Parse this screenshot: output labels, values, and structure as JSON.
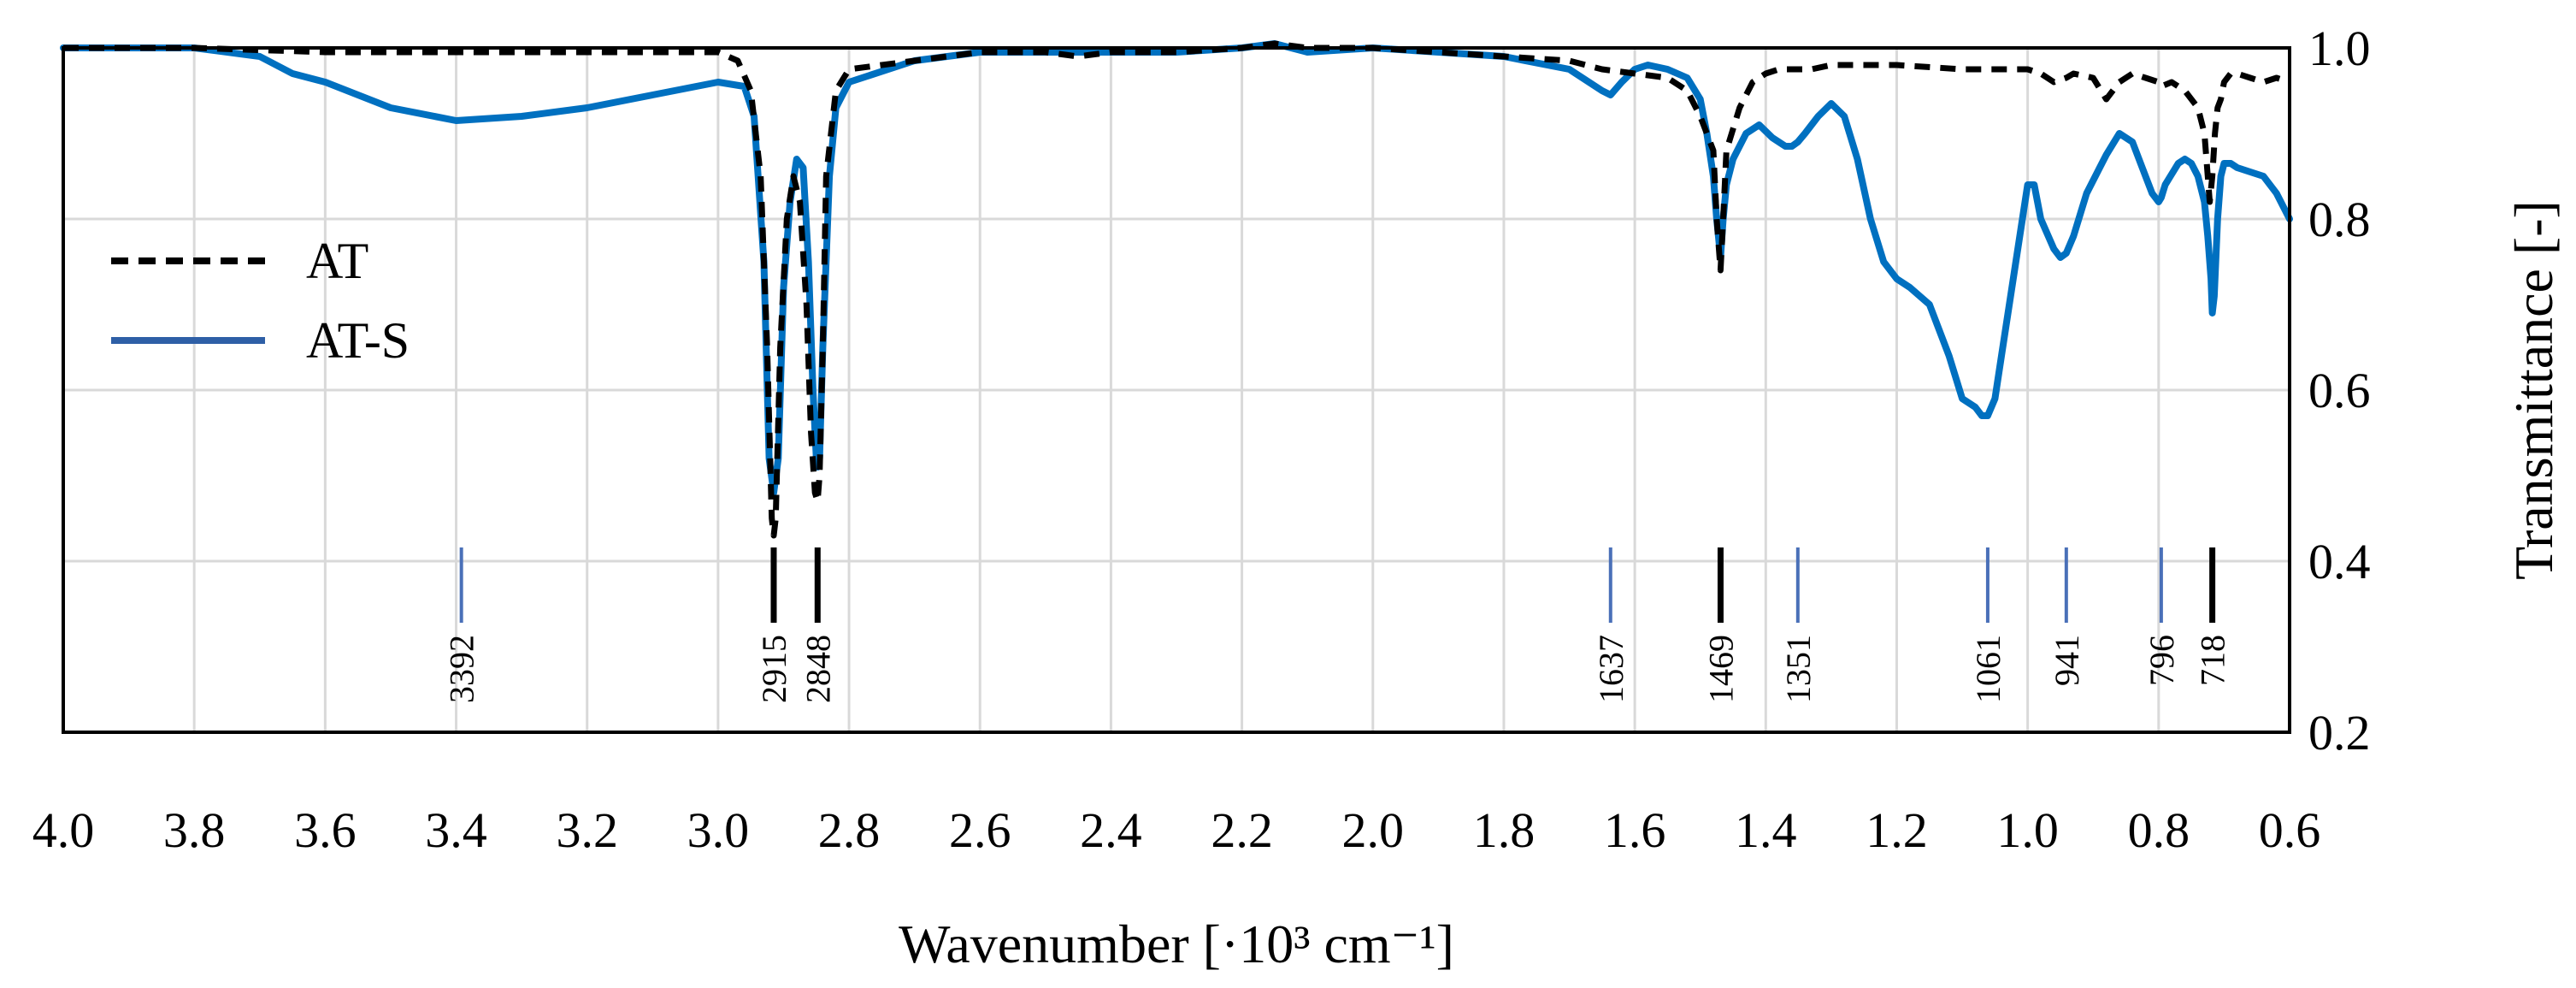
{
  "chart_data": {
    "type": "line",
    "title": "",
    "xlabel": "Wavenumber [·10³ cm⁻¹]",
    "ylabel": "Transmittance [-]",
    "xlim": [
      4.0,
      0.6
    ],
    "ylim": [
      0.2,
      1.0
    ],
    "x_reversed": true,
    "x_ticks": [
      "4.0",
      "3.8",
      "3.6",
      "3.4",
      "3.2",
      "3.0",
      "2.8",
      "2.6",
      "2.4",
      "2.2",
      "2.0",
      "1.8",
      "1.6",
      "1.4",
      "1.2",
      "1.0",
      "0.8",
      "0.6"
    ],
    "y_ticks": [
      "0.2",
      "0.4",
      "0.6",
      "0.8",
      "1.0"
    ],
    "y_axis_side": "right",
    "grid": true,
    "legend_position": "left",
    "series": [
      {
        "name": "AT",
        "color": "#000000",
        "dash": "dashed",
        "x": [
          4.0,
          3.8,
          3.6,
          3.4,
          3.2,
          3.0,
          2.97,
          2.95,
          2.935,
          2.925,
          2.918,
          2.915,
          2.912,
          2.905,
          2.895,
          2.885,
          2.875,
          2.865,
          2.858,
          2.852,
          2.848,
          2.845,
          2.84,
          2.835,
          2.82,
          2.8,
          2.7,
          2.6,
          2.5,
          2.45,
          2.4,
          2.3,
          2.2,
          2.15,
          2.1,
          2.0,
          1.9,
          1.8,
          1.7,
          1.65,
          1.6,
          1.55,
          1.52,
          1.5,
          1.48,
          1.475,
          1.469,
          1.465,
          1.46,
          1.44,
          1.42,
          1.4,
          1.38,
          1.351,
          1.33,
          1.3,
          1.2,
          1.1,
          1.061,
          1.0,
          0.98,
          0.96,
          0.941,
          0.93,
          0.9,
          0.88,
          0.86,
          0.84,
          0.82,
          0.8,
          0.796,
          0.78,
          0.76,
          0.74,
          0.73,
          0.725,
          0.722,
          0.718,
          0.714,
          0.71,
          0.705,
          0.7,
          0.69,
          0.68,
          0.66,
          0.64,
          0.62,
          0.6
        ],
        "y": [
          1.0,
          1.0,
          0.995,
          0.995,
          0.995,
          0.995,
          0.985,
          0.95,
          0.85,
          0.65,
          0.45,
          0.43,
          0.45,
          0.65,
          0.8,
          0.85,
          0.82,
          0.7,
          0.55,
          0.48,
          0.47,
          0.5,
          0.65,
          0.85,
          0.95,
          0.975,
          0.985,
          0.995,
          0.995,
          0.99,
          0.995,
          0.995,
          1.0,
          1.005,
          1.0,
          1.0,
          0.995,
          0.99,
          0.985,
          0.975,
          0.97,
          0.965,
          0.95,
          0.92,
          0.88,
          0.8,
          0.74,
          0.8,
          0.88,
          0.93,
          0.96,
          0.97,
          0.975,
          0.975,
          0.975,
          0.98,
          0.98,
          0.975,
          0.975,
          0.975,
          0.97,
          0.96,
          0.965,
          0.97,
          0.965,
          0.94,
          0.96,
          0.97,
          0.965,
          0.96,
          0.955,
          0.96,
          0.95,
          0.93,
          0.9,
          0.85,
          0.82,
          0.85,
          0.9,
          0.93,
          0.94,
          0.96,
          0.97,
          0.97,
          0.965,
          0.96,
          0.965,
          0.96
        ]
      },
      {
        "name": "AT-S",
        "color": "#0070C0",
        "dash": "solid",
        "x": [
          4.0,
          3.8,
          3.7,
          3.65,
          3.6,
          3.5,
          3.4,
          3.3,
          3.2,
          3.1,
          3.0,
          2.96,
          2.945,
          2.93,
          2.922,
          2.915,
          2.908,
          2.9,
          2.89,
          2.88,
          2.87,
          2.862,
          2.855,
          2.85,
          2.848,
          2.845,
          2.84,
          2.83,
          2.82,
          2.8,
          2.7,
          2.6,
          2.5,
          2.4,
          2.3,
          2.2,
          2.15,
          2.1,
          2.0,
          1.9,
          1.8,
          1.7,
          1.68,
          1.65,
          1.637,
          1.62,
          1.6,
          1.58,
          1.55,
          1.52,
          1.5,
          1.49,
          1.48,
          1.475,
          1.469,
          1.465,
          1.46,
          1.45,
          1.43,
          1.41,
          1.39,
          1.37,
          1.36,
          1.351,
          1.34,
          1.32,
          1.3,
          1.28,
          1.26,
          1.24,
          1.22,
          1.2,
          1.18,
          1.15,
          1.12,
          1.1,
          1.08,
          1.07,
          1.061,
          1.05,
          1.04,
          1.02,
          1.0,
          0.99,
          0.98,
          0.96,
          0.95,
          0.941,
          0.93,
          0.91,
          0.89,
          0.88,
          0.86,
          0.84,
          0.82,
          0.81,
          0.8,
          0.796,
          0.79,
          0.77,
          0.76,
          0.75,
          0.74,
          0.73,
          0.725,
          0.72,
          0.718,
          0.715,
          0.71,
          0.705,
          0.7,
          0.69,
          0.68,
          0.66,
          0.64,
          0.62,
          0.6
        ],
        "y": [
          1.0,
          1.0,
          0.99,
          0.97,
          0.96,
          0.93,
          0.915,
          0.92,
          0.93,
          0.945,
          0.96,
          0.955,
          0.92,
          0.75,
          0.52,
          0.48,
          0.52,
          0.72,
          0.82,
          0.87,
          0.86,
          0.75,
          0.6,
          0.52,
          0.51,
          0.52,
          0.65,
          0.85,
          0.93,
          0.96,
          0.985,
          0.995,
          0.995,
          0.995,
          0.995,
          1.0,
          1.005,
          0.995,
          1.0,
          0.995,
          0.99,
          0.975,
          0.965,
          0.95,
          0.945,
          0.96,
          0.975,
          0.98,
          0.975,
          0.965,
          0.94,
          0.9,
          0.85,
          0.8,
          0.755,
          0.8,
          0.84,
          0.87,
          0.9,
          0.91,
          0.895,
          0.885,
          0.885,
          0.89,
          0.9,
          0.92,
          0.935,
          0.92,
          0.87,
          0.8,
          0.75,
          0.73,
          0.72,
          0.7,
          0.64,
          0.59,
          0.58,
          0.57,
          0.57,
          0.59,
          0.64,
          0.74,
          0.84,
          0.84,
          0.8,
          0.765,
          0.755,
          0.76,
          0.78,
          0.83,
          0.86,
          0.875,
          0.9,
          0.89,
          0.85,
          0.83,
          0.82,
          0.825,
          0.84,
          0.865,
          0.87,
          0.865,
          0.85,
          0.82,
          0.78,
          0.73,
          0.69,
          0.71,
          0.8,
          0.85,
          0.865,
          0.865,
          0.86,
          0.855,
          0.85,
          0.83,
          0.8
        ]
      }
    ],
    "annotations": [
      {
        "label": "3392",
        "x": 3.392,
        "color": "#4A70B8"
      },
      {
        "label": "2915",
        "x": 2.915,
        "color": "#000000"
      },
      {
        "label": "2848",
        "x": 2.848,
        "color": "#000000"
      },
      {
        "label": "1637",
        "x": 1.637,
        "color": "#4A70B8"
      },
      {
        "label": "1469",
        "x": 1.469,
        "color": "#000000"
      },
      {
        "label": "1351",
        "x": 1.351,
        "color": "#4A70B8"
      },
      {
        "label": "1061",
        "x": 1.061,
        "color": "#4A70B8"
      },
      {
        "label": "941",
        "x": 0.941,
        "color": "#4A70B8"
      },
      {
        "label": "796",
        "x": 0.796,
        "color": "#4A70B8"
      },
      {
        "label": "718",
        "x": 0.718,
        "color": "#000000"
      }
    ]
  }
}
